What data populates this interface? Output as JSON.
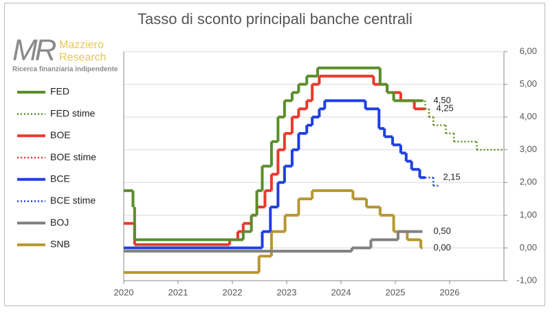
{
  "logo": {
    "mark": "MR",
    "name_line1": "Mazziero",
    "name_line2": "Research",
    "tagline": "Ricerca finanziaria indipendente"
  },
  "chart_data": {
    "type": "line",
    "step": true,
    "title": "Tasso di sconto principali banche centrali",
    "xlim": [
      2020,
      2027
    ],
    "xticks": [
      2020,
      2021,
      2022,
      2023,
      2024,
      2025,
      2026
    ],
    "ylim": [
      -1,
      6
    ],
    "yticks": [
      {
        "value": -1,
        "label": "-1,00"
      },
      {
        "value": 0,
        "label": "0,00"
      },
      {
        "value": 1,
        "label": "1,00"
      },
      {
        "value": 2,
        "label": "2,00"
      },
      {
        "value": 3,
        "label": "3,00"
      },
      {
        "value": 4,
        "label": "4,00"
      },
      {
        "value": 5,
        "label": "5,00"
      },
      {
        "value": 6,
        "label": "6,00"
      }
    ],
    "grid": true,
    "series": [
      {
        "name": "FED",
        "color": "#5b8c2a",
        "dashed": false,
        "x": [
          2020,
          2020.17,
          2020.2,
          2022.2,
          2022.35,
          2022.45,
          2022.55,
          2022.72,
          2022.84,
          2022.96,
          2023.1,
          2023.22,
          2023.37,
          2023.57,
          2024.72,
          2024.85,
          2024.97,
          2025.5
        ],
        "values": [
          1.75,
          1.25,
          0.25,
          0.5,
          1.0,
          1.75,
          2.5,
          3.25,
          4.0,
          4.5,
          4.75,
          5.0,
          5.25,
          5.5,
          5.0,
          4.75,
          4.5,
          4.5
        ],
        "value_labels": [
          null,
          null,
          null,
          null,
          null,
          null,
          null,
          null,
          null,
          null,
          null,
          null,
          null,
          null,
          null,
          null,
          null,
          "4,50"
        ]
      },
      {
        "name": "FED stime",
        "color": "#5b8c2a",
        "dashed": true,
        "x": [
          2025.5,
          2025.55,
          2025.62,
          2025.7,
          2025.93,
          2026.08,
          2026.5,
          2027
        ],
        "values": [
          4.5,
          4.25,
          4.0,
          3.75,
          3.5,
          3.25,
          3.0,
          3.0
        ]
      },
      {
        "name": "BOE",
        "color": "#e8392b",
        "dashed": false,
        "x": [
          2020,
          2020.2,
          2021.95,
          2022.1,
          2022.2,
          2022.35,
          2022.45,
          2022.6,
          2022.72,
          2022.84,
          2022.96,
          2023.1,
          2023.22,
          2023.37,
          2023.47,
          2023.6,
          2024.6,
          2024.85,
          2025.1,
          2025.35,
          2025.55
        ],
        "values": [
          0.75,
          0.1,
          0.25,
          0.5,
          0.75,
          1.0,
          1.25,
          1.75,
          2.25,
          3.0,
          3.5,
          4.0,
          4.25,
          4.5,
          5.0,
          5.25,
          5.0,
          4.75,
          4.5,
          4.25,
          4.25
        ],
        "value_labels": [
          null,
          null,
          null,
          null,
          null,
          null,
          null,
          null,
          null,
          null,
          null,
          null,
          null,
          null,
          null,
          null,
          null,
          null,
          null,
          null,
          "4,25"
        ]
      },
      {
        "name": "BOE stime",
        "color": "#e8392b",
        "dashed": true,
        "x": [
          2025.55,
          2025.62,
          2025.7
        ],
        "values": [
          4.25,
          4.0,
          4.0
        ]
      },
      {
        "name": "BCE",
        "color": "#1f3fe0",
        "dashed": false,
        "x": [
          2020,
          2022.55,
          2022.7,
          2022.84,
          2022.96,
          2023.1,
          2023.22,
          2023.37,
          2023.47,
          2023.6,
          2023.7,
          2024.45,
          2024.7,
          2024.8,
          2024.95,
          2025.1,
          2025.2,
          2025.3,
          2025.45,
          2025.55
        ],
        "values": [
          0,
          0.5,
          1.25,
          2.0,
          2.5,
          3.0,
          3.5,
          3.75,
          4.0,
          4.25,
          4.5,
          4.25,
          3.65,
          3.4,
          3.15,
          2.9,
          2.65,
          2.4,
          2.15,
          2.15
        ],
        "value_labels": [
          null,
          null,
          null,
          null,
          null,
          null,
          null,
          null,
          null,
          null,
          null,
          null,
          null,
          null,
          null,
          null,
          null,
          null,
          null,
          "2,15"
        ]
      },
      {
        "name": "BCE stime",
        "color": "#1f3fe0",
        "dashed": true,
        "x": [
          2025.55,
          2025.7,
          2025.8
        ],
        "values": [
          2.15,
          1.9,
          1.9
        ]
      },
      {
        "name": "BOJ",
        "color": "#808080",
        "dashed": false,
        "x": [
          2020,
          2024.2,
          2024.55,
          2025.05,
          2025.5
        ],
        "values": [
          -0.1,
          0,
          0.25,
          0.5,
          0.5
        ],
        "value_labels": [
          null,
          null,
          null,
          null,
          "0,50"
        ]
      },
      {
        "name": "SNB",
        "color": "#b8962e",
        "dashed": false,
        "x": [
          2020,
          2022.49,
          2022.72,
          2022.97,
          2023.22,
          2023.47,
          2024.22,
          2024.47,
          2024.72,
          2024.97,
          2025.22,
          2025.47,
          2025.5
        ],
        "values": [
          -0.75,
          -0.25,
          0.5,
          1.0,
          1.5,
          1.75,
          1.5,
          1.25,
          1.0,
          0.5,
          0.25,
          0,
          0
        ],
        "value_labels": [
          null,
          null,
          null,
          null,
          null,
          null,
          null,
          null,
          null,
          null,
          null,
          null,
          "0,00"
        ]
      }
    ]
  }
}
